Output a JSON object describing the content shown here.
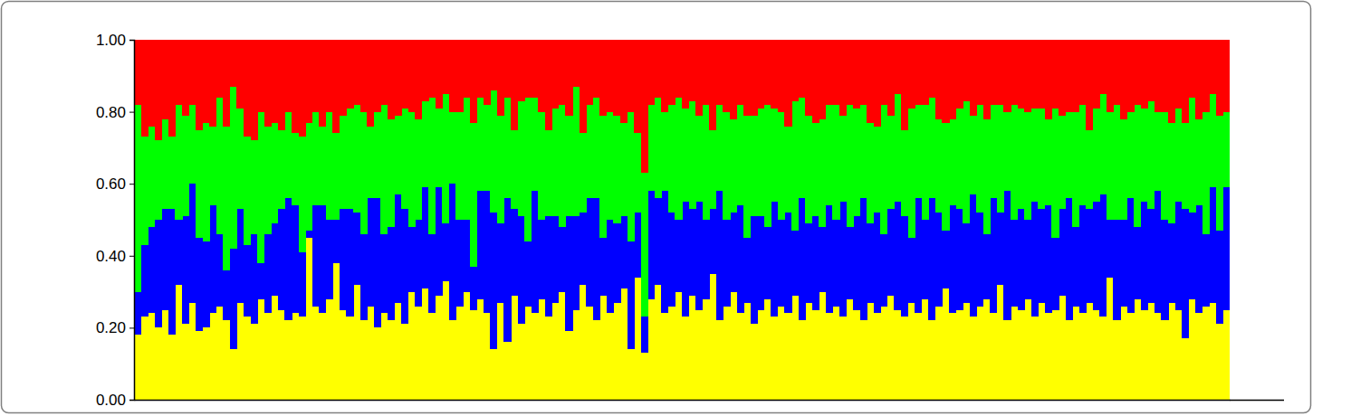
{
  "chart_data": {
    "type": "bar",
    "stacked": true,
    "tick_labels": "y",
    "ylim": [
      0,
      1
    ],
    "yticks": [
      {
        "value": 0,
        "label": "0.00"
      },
      {
        "value": 0.2,
        "label": "0.20"
      },
      {
        "value": 0.4,
        "label": "0.40"
      },
      {
        "value": 0.6,
        "label": "0.60"
      },
      {
        "value": 0.8,
        "label": "0.80"
      },
      {
        "value": 1,
        "label": "1.00"
      }
    ],
    "categories": [
      null,
      null,
      null,
      null,
      null,
      null,
      null,
      null,
      null,
      null,
      null,
      null,
      null,
      null,
      null,
      null,
      null,
      null,
      null,
      null,
      null,
      null,
      null,
      null,
      null,
      null,
      null,
      null,
      null,
      null,
      null,
      null,
      null,
      null,
      null,
      null,
      null,
      null,
      null,
      null,
      null,
      null,
      null,
      null,
      null,
      null,
      null,
      null,
      null,
      null,
      null,
      null,
      null,
      null,
      null,
      null,
      null,
      null,
      null,
      null,
      null,
      null,
      null,
      null,
      null,
      null,
      null,
      null,
      null,
      null,
      null,
      null,
      null,
      null,
      null,
      null,
      null,
      null,
      null,
      null,
      null,
      null,
      null,
      null,
      null,
      null,
      null,
      null,
      null,
      null,
      null,
      null,
      null,
      null,
      null,
      null,
      null,
      null,
      null,
      null,
      null,
      null,
      null,
      null,
      null,
      null,
      null,
      null,
      null,
      null,
      null,
      null,
      null,
      null,
      null,
      null,
      null,
      null,
      null,
      null,
      null,
      null,
      null,
      null,
      null,
      null,
      null,
      null,
      null,
      null,
      null,
      null,
      null,
      null,
      null,
      null,
      null,
      null,
      null,
      null,
      null,
      null,
      null,
      null,
      null,
      null,
      null,
      null,
      null,
      null,
      null,
      null,
      null,
      null,
      null,
      null,
      null,
      null,
      null,
      null
    ],
    "series": [
      {
        "color": "#ffff00",
        "values": [
          0.18,
          0.23,
          0.24,
          0.2,
          0.25,
          0.18,
          0.32,
          0.21,
          0.27,
          0.19,
          0.2,
          0.24,
          0.26,
          0.22,
          0.14,
          0.27,
          0.23,
          0.21,
          0.28,
          0.24,
          0.29,
          0.25,
          0.22,
          0.24,
          0.23,
          0.45,
          0.26,
          0.24,
          0.28,
          0.38,
          0.25,
          0.23,
          0.32,
          0.22,
          0.26,
          0.2,
          0.24,
          0.22,
          0.27,
          0.21,
          0.3,
          0.26,
          0.31,
          0.24,
          0.29,
          0.33,
          0.22,
          0.26,
          0.3,
          0.25,
          0.28,
          0.24,
          0.14,
          0.27,
          0.16,
          0.29,
          0.21,
          0.26,
          0.24,
          0.28,
          0.23,
          0.27,
          0.3,
          0.19,
          0.25,
          0.32,
          0.26,
          0.22,
          0.29,
          0.24,
          0.27,
          0.31,
          0.14,
          0.34,
          0.13,
          0.28,
          0.32,
          0.24,
          0.26,
          0.3,
          0.23,
          0.29,
          0.25,
          0.28,
          0.35,
          0.22,
          0.26,
          0.3,
          0.24,
          0.27,
          0.21,
          0.25,
          0.28,
          0.23,
          0.26,
          0.24,
          0.29,
          0.22,
          0.27,
          0.25,
          0.3,
          0.24,
          0.26,
          0.23,
          0.28,
          0.25,
          0.22,
          0.27,
          0.24,
          0.26,
          0.29,
          0.25,
          0.23,
          0.27,
          0.24,
          0.28,
          0.22,
          0.26,
          0.31,
          0.24,
          0.25,
          0.27,
          0.23,
          0.26,
          0.28,
          0.24,
          0.32,
          0.22,
          0.26,
          0.25,
          0.28,
          0.23,
          0.27,
          0.24,
          0.25,
          0.29,
          0.22,
          0.26,
          0.24,
          0.27,
          0.25,
          0.23,
          0.34,
          0.22,
          0.26,
          0.24,
          0.28,
          0.25,
          0.27,
          0.24,
          0.22,
          0.27,
          0.25,
          0.17,
          0.28,
          0.24,
          0.26,
          0.27,
          0.21,
          0.25
        ]
      },
      {
        "color": "#0000ff",
        "values": [
          0.12,
          0.2,
          0.24,
          0.3,
          0.28,
          0.35,
          0.18,
          0.3,
          0.33,
          0.26,
          0.24,
          0.3,
          0.2,
          0.14,
          0.28,
          0.26,
          0.2,
          0.25,
          0.1,
          0.22,
          0.2,
          0.28,
          0.34,
          0.3,
          0.18,
          0.02,
          0.28,
          0.3,
          0.22,
          0.12,
          0.28,
          0.3,
          0.2,
          0.24,
          0.3,
          0.36,
          0.22,
          0.26,
          0.3,
          0.32,
          0.18,
          0.24,
          0.28,
          0.22,
          0.3,
          0.16,
          0.38,
          0.24,
          0.2,
          0.12,
          0.3,
          0.34,
          0.38,
          0.22,
          0.4,
          0.24,
          0.3,
          0.18,
          0.34,
          0.22,
          0.28,
          0.24,
          0.18,
          0.32,
          0.26,
          0.2,
          0.3,
          0.34,
          0.16,
          0.26,
          0.22,
          0.2,
          0.3,
          0.18,
          0.1,
          0.3,
          0.24,
          0.34,
          0.26,
          0.2,
          0.32,
          0.24,
          0.3,
          0.22,
          0.18,
          0.36,
          0.24,
          0.22,
          0.3,
          0.18,
          0.3,
          0.26,
          0.2,
          0.32,
          0.24,
          0.28,
          0.18,
          0.34,
          0.22,
          0.26,
          0.18,
          0.3,
          0.24,
          0.32,
          0.2,
          0.26,
          0.34,
          0.22,
          0.28,
          0.2,
          0.24,
          0.3,
          0.28,
          0.18,
          0.32,
          0.22,
          0.34,
          0.26,
          0.16,
          0.3,
          0.28,
          0.22,
          0.34,
          0.26,
          0.18,
          0.32,
          0.2,
          0.36,
          0.24,
          0.28,
          0.22,
          0.32,
          0.26,
          0.3,
          0.2,
          0.24,
          0.34,
          0.22,
          0.3,
          0.26,
          0.3,
          0.34,
          0.16,
          0.28,
          0.24,
          0.32,
          0.2,
          0.3,
          0.26,
          0.34,
          0.28,
          0.22,
          0.3,
          0.36,
          0.24,
          0.3,
          0.2,
          0.32,
          0.26,
          0.34
        ]
      },
      {
        "color": "#00ff00",
        "values": [
          0.52,
          0.3,
          0.28,
          0.22,
          0.25,
          0.2,
          0.32,
          0.28,
          0.22,
          0.3,
          0.33,
          0.22,
          0.38,
          0.4,
          0.45,
          0.28,
          0.3,
          0.26,
          0.42,
          0.3,
          0.28,
          0.22,
          0.24,
          0.2,
          0.32,
          0.3,
          0.26,
          0.22,
          0.3,
          0.24,
          0.26,
          0.28,
          0.3,
          0.34,
          0.2,
          0.24,
          0.36,
          0.3,
          0.22,
          0.28,
          0.32,
          0.28,
          0.24,
          0.38,
          0.22,
          0.36,
          0.2,
          0.3,
          0.34,
          0.4,
          0.26,
          0.24,
          0.34,
          0.3,
          0.28,
          0.22,
          0.32,
          0.4,
          0.26,
          0.3,
          0.24,
          0.3,
          0.34,
          0.28,
          0.36,
          0.22,
          0.26,
          0.28,
          0.34,
          0.3,
          0.3,
          0.26,
          0.36,
          0.22,
          0.4,
          0.24,
          0.28,
          0.22,
          0.3,
          0.34,
          0.26,
          0.3,
          0.24,
          0.32,
          0.22,
          0.24,
          0.3,
          0.26,
          0.28,
          0.34,
          0.28,
          0.3,
          0.34,
          0.26,
          0.3,
          0.24,
          0.36,
          0.28,
          0.3,
          0.26,
          0.3,
          0.28,
          0.32,
          0.24,
          0.34,
          0.3,
          0.26,
          0.28,
          0.24,
          0.36,
          0.26,
          0.3,
          0.24,
          0.36,
          0.26,
          0.32,
          0.28,
          0.26,
          0.3,
          0.24,
          0.28,
          0.34,
          0.22,
          0.3,
          0.32,
          0.26,
          0.3,
          0.22,
          0.32,
          0.28,
          0.3,
          0.26,
          0.28,
          0.24,
          0.36,
          0.26,
          0.24,
          0.32,
          0.28,
          0.22,
          0.26,
          0.28,
          0.3,
          0.32,
          0.28,
          0.24,
          0.34,
          0.26,
          0.3,
          0.22,
          0.3,
          0.28,
          0.26,
          0.24,
          0.32,
          0.24,
          0.34,
          0.26,
          0.32,
          0.21
        ]
      },
      {
        "color": "#ff0000",
        "values": [
          0.18,
          0.27,
          0.24,
          0.28,
          0.22,
          0.27,
          0.18,
          0.21,
          0.18,
          0.25,
          0.23,
          0.24,
          0.16,
          0.24,
          0.13,
          0.19,
          0.27,
          0.28,
          0.2,
          0.24,
          0.23,
          0.25,
          0.2,
          0.26,
          0.27,
          0.23,
          0.2,
          0.24,
          0.2,
          0.26,
          0.21,
          0.19,
          0.18,
          0.2,
          0.24,
          0.2,
          0.18,
          0.22,
          0.21,
          0.19,
          0.2,
          0.22,
          0.17,
          0.16,
          0.19,
          0.15,
          0.2,
          0.2,
          0.16,
          0.23,
          0.16,
          0.18,
          0.14,
          0.21,
          0.16,
          0.25,
          0.17,
          0.16,
          0.16,
          0.2,
          0.25,
          0.19,
          0.18,
          0.21,
          0.13,
          0.26,
          0.18,
          0.16,
          0.21,
          0.2,
          0.21,
          0.23,
          0.2,
          0.26,
          0.37,
          0.18,
          0.16,
          0.2,
          0.18,
          0.16,
          0.19,
          0.17,
          0.21,
          0.18,
          0.25,
          0.18,
          0.2,
          0.22,
          0.18,
          0.21,
          0.21,
          0.19,
          0.18,
          0.19,
          0.2,
          0.24,
          0.17,
          0.16,
          0.21,
          0.23,
          0.22,
          0.18,
          0.18,
          0.21,
          0.18,
          0.19,
          0.18,
          0.23,
          0.24,
          0.18,
          0.21,
          0.15,
          0.25,
          0.19,
          0.18,
          0.18,
          0.16,
          0.22,
          0.23,
          0.22,
          0.19,
          0.17,
          0.21,
          0.18,
          0.22,
          0.18,
          0.18,
          0.2,
          0.18,
          0.19,
          0.2,
          0.19,
          0.19,
          0.22,
          0.19,
          0.21,
          0.2,
          0.2,
          0.18,
          0.25,
          0.19,
          0.15,
          0.2,
          0.18,
          0.22,
          0.2,
          0.18,
          0.19,
          0.17,
          0.2,
          0.2,
          0.23,
          0.19,
          0.23,
          0.16,
          0.22,
          0.2,
          0.15,
          0.21,
          0.2
        ]
      }
    ]
  }
}
